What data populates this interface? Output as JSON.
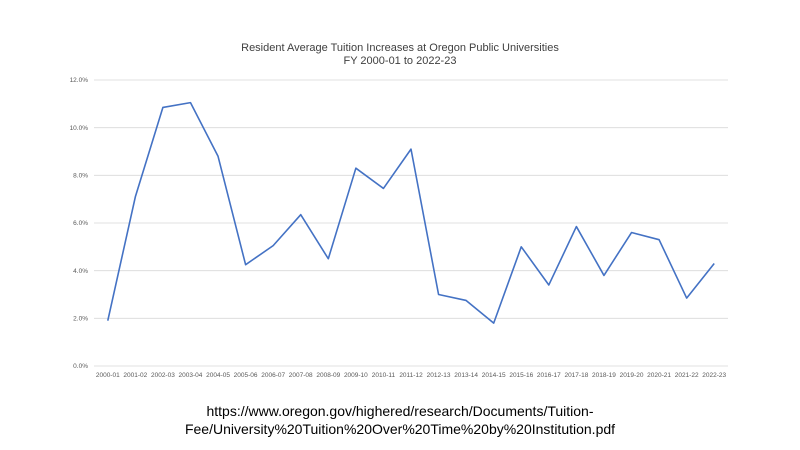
{
  "chart_data": {
    "type": "line",
    "title": "Resident Average Tuition Increases at Oregon Public Universities",
    "subtitle": "FY 2000-01 to 2022-23",
    "xlabel": "",
    "ylabel": "",
    "categories": [
      "2000-01",
      "2001-02",
      "2002-03",
      "2003-04",
      "2004-05",
      "2005-06",
      "2006-07",
      "2007-08",
      "2008-09",
      "2009-10",
      "2010-11",
      "2011-12",
      "2012-13",
      "2013-14",
      "2014-15",
      "2015-16",
      "2016-17",
      "2017-18",
      "2018-19",
      "2019-20",
      "2020-21",
      "2021-22",
      "2022-23"
    ],
    "series": [
      {
        "name": "",
        "color": "#4472C4",
        "values": [
          1.9,
          7.1,
          10.85,
          11.05,
          8.8,
          4.25,
          5.05,
          6.35,
          4.5,
          8.3,
          7.45,
          9.1,
          3.0,
          2.75,
          1.8,
          5.0,
          3.4,
          5.85,
          3.8,
          5.6,
          5.3,
          2.85,
          4.3
        ]
      }
    ],
    "ylim": [
      0,
      12
    ],
    "yticks": [
      0,
      2,
      4,
      6,
      8,
      10,
      12
    ],
    "yticklabels": [
      "0.0%",
      "2.0%",
      "4.0%",
      "6.0%",
      "8.0%",
      "10.0%",
      "12.0%"
    ],
    "grid": true,
    "legend": "none"
  },
  "source": {
    "line1": "https://www.oregon.gov/highered/research/Documents/Tuition-",
    "line2": "Fee/University%20Tuition%20Over%20Time%20by%20Institution.pdf"
  },
  "colors": {
    "grid": "#D9D9D9",
    "axis_text": "#595959",
    "title_text": "#404040"
  }
}
